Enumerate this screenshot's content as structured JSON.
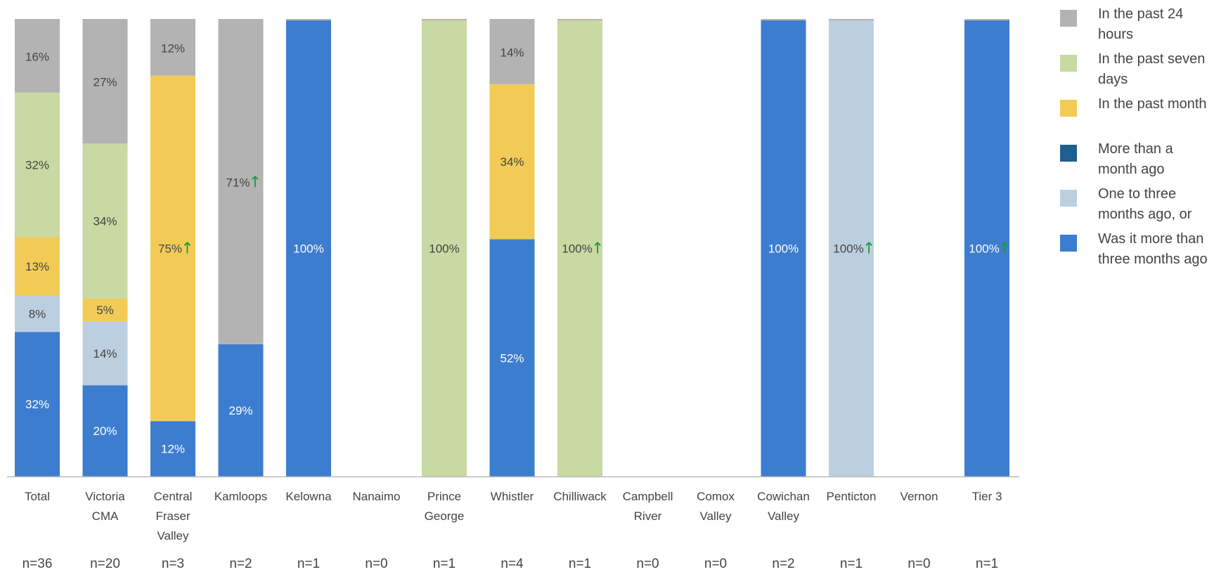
{
  "chart_data": {
    "type": "bar",
    "stacked": true,
    "percent": true,
    "categories": [
      "Total",
      "Victoria CMA",
      "Central Fraser Valley",
      "Kamloops",
      "Kelowna",
      "Nanaimo",
      "Prince George",
      "Whistler",
      "Chilliwack",
      "Campbell River",
      "Comox Valley",
      "Cowichan Valley",
      "Penticton",
      "Vernon",
      "Tier 3"
    ],
    "category_lines": [
      [
        "Total"
      ],
      [
        "Victoria",
        "CMA"
      ],
      [
        "Central",
        "Fraser",
        "Valley"
      ],
      [
        "Kamloops"
      ],
      [
        "Kelowna"
      ],
      [
        "Nanaimo"
      ],
      [
        "Prince",
        "George"
      ],
      [
        "Whistler"
      ],
      [
        "Chilliwack"
      ],
      [
        "Campbell",
        "River"
      ],
      [
        "Comox",
        "Valley"
      ],
      [
        "Cowichan",
        "Valley"
      ],
      [
        "Penticton"
      ],
      [
        "Vernon"
      ],
      [
        "Tier 3"
      ]
    ],
    "sample_sizes": [
      "n=36",
      "n=20",
      "n=3",
      "n=2",
      "n=1",
      "n=0",
      "n=1",
      "n=4",
      "n=1",
      "n=0",
      "n=0",
      "n=2",
      "n=1",
      "n=0",
      "n=1"
    ],
    "series": [
      {
        "name": "Was it more than three months ago",
        "color": "#3d7dcf",
        "values": [
          32,
          20,
          12,
          29,
          100,
          0,
          0,
          52,
          0,
          0,
          0,
          100,
          0,
          0,
          100
        ],
        "labels": [
          "32%",
          "20%",
          "12%",
          "29%",
          "100%",
          "",
          "",
          "52%",
          "",
          "",
          "",
          "100%",
          "",
          "",
          "100%"
        ]
      },
      {
        "name": "One to three months ago, or",
        "color": "#bccfe0",
        "values": [
          8,
          14,
          0,
          0,
          0,
          0,
          0,
          0,
          0,
          0,
          0,
          0,
          100,
          0,
          0
        ],
        "labels": [
          "8%",
          "14%",
          "",
          "",
          "",
          "",
          "",
          "",
          "",
          "",
          "",
          "",
          "100%",
          "",
          ""
        ]
      },
      {
        "name": "More than a month ago",
        "color": "#1f5f8f",
        "values": [
          0,
          0,
          0,
          0,
          0,
          0,
          0,
          0,
          0,
          0,
          0,
          0,
          0,
          0,
          0
        ],
        "labels": [
          "",
          "",
          "",
          "",
          "",
          "",
          "",
          "",
          "",
          "",
          "",
          "",
          "",
          "",
          ""
        ]
      },
      {
        "name": "In the past month",
        "color": "#f2cb57",
        "values": [
          13,
          5,
          75,
          0,
          0,
          0,
          0,
          34,
          0,
          0,
          0,
          0,
          0,
          0,
          0
        ],
        "labels": [
          "13%",
          "5%",
          "75%",
          "",
          "",
          "",
          "",
          "34%",
          "",
          "",
          "",
          "",
          "",
          "",
          ""
        ]
      },
      {
        "name": "In the past seven days",
        "color": "#c8d9a3",
        "values": [
          32,
          34,
          0,
          0,
          0,
          0,
          100,
          0,
          100,
          0,
          0,
          0,
          0,
          0,
          0
        ],
        "labels": [
          "32%",
          "34%",
          "",
          "",
          "",
          "",
          "100%",
          "",
          "100%",
          "",
          "",
          "",
          "",
          "",
          ""
        ]
      },
      {
        "name": "In the past 24 hours",
        "color": "#b3b3b3",
        "values": [
          16,
          27,
          12,
          71,
          0,
          0,
          0,
          14,
          0,
          0,
          0,
          0,
          0,
          0,
          0
        ],
        "labels": [
          "16%",
          "27%",
          "12%",
          "71%",
          "",
          "",
          "",
          "14%",
          "",
          "",
          "",
          "",
          "",
          "",
          ""
        ]
      }
    ],
    "significance_markers": [
      {
        "category": "Central Fraser Valley",
        "series": "In the past month",
        "symbol": "↑"
      },
      {
        "category": "Kamloops",
        "series": "In the past 24 hours",
        "symbol": "↑"
      },
      {
        "category": "Chilliwack",
        "series": "In the past seven days",
        "symbol": "↑"
      },
      {
        "category": "Penticton",
        "series": "One to three months ago, or",
        "symbol": "↑"
      },
      {
        "category": "Tier 3",
        "series": "Was it more than three months ago",
        "symbol": "↑"
      }
    ],
    "legend": {
      "position": "right",
      "items": [
        {
          "name": "In the past 24 hours",
          "color": "#b3b3b3"
        },
        {
          "name": "In the past seven days",
          "color": "#c8d9a3"
        },
        {
          "name": "In the past month",
          "color": "#f2cb57"
        },
        {
          "name": "More than a month ago",
          "color": "#1f5f8f"
        },
        {
          "name": "One to three months ago, or",
          "color": "#bccfe0"
        },
        {
          "name": "Was it more than three months ago",
          "color": "#3d7dcf"
        }
      ]
    },
    "ylim": [
      0,
      100
    ],
    "grid": false,
    "colors": {
      "marker": "#1a9a3a",
      "label_dark": "#444444",
      "label_light": "#ffffff",
      "axis": "#bbbbbb"
    }
  }
}
